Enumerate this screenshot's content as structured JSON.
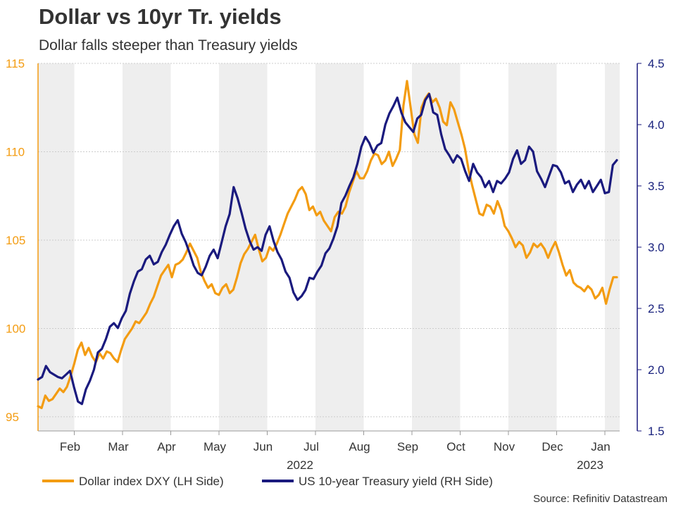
{
  "chart_data": {
    "type": "line",
    "title": "Dollar vs 10yr Tr. yields",
    "subtitle": "Dollar falls steeper than Treasury yields",
    "months": [
      "Feb",
      "Mar",
      "Apr",
      "May",
      "Jun",
      "Jul",
      "Aug",
      "Sep",
      "Oct",
      "Nov",
      "Dec",
      "Jan"
    ],
    "year_labels": [
      "2022",
      "2023"
    ],
    "y_left": {
      "ticks": [
        "115",
        "110",
        "105",
        "100",
        "95"
      ],
      "range": [
        94.2,
        115
      ]
    },
    "y_right": {
      "ticks": [
        "4.5",
        "4.0",
        "3.5",
        "3.0",
        "2.5",
        "2.0",
        "1.5"
      ],
      "range": [
        1.5,
        4.5
      ]
    },
    "series": [
      {
        "name": "Dollar index DXY (LH Side)",
        "axis": "left",
        "color": "#f39c12",
        "values": [
          95.6,
          95.5,
          96.2,
          95.9,
          96.0,
          96.3,
          96.6,
          96.4,
          96.7,
          97.3,
          98.0,
          98.8,
          99.2,
          98.5,
          98.9,
          98.4,
          98.1,
          98.6,
          98.3,
          98.7,
          98.6,
          98.3,
          98.1,
          98.8,
          99.4,
          99.7,
          100.0,
          100.4,
          100.3,
          100.6,
          100.9,
          101.4,
          101.8,
          102.4,
          103.0,
          103.3,
          103.6,
          102.9,
          103.6,
          103.7,
          103.9,
          104.3,
          104.8,
          104.4,
          104.0,
          103.2,
          102.7,
          102.3,
          102.5,
          102.0,
          101.9,
          102.3,
          102.5,
          102.0,
          102.2,
          102.9,
          103.7,
          104.2,
          104.5,
          104.9,
          105.3,
          104.5,
          103.8,
          104.0,
          104.6,
          104.4,
          104.8,
          105.3,
          105.9,
          106.5,
          106.9,
          107.3,
          107.8,
          108.0,
          107.6,
          106.7,
          106.9,
          106.4,
          106.6,
          106.1,
          105.8,
          105.5,
          106.3,
          106.6,
          106.5,
          106.9,
          107.7,
          108.3,
          108.9,
          108.5,
          108.5,
          108.9,
          109.5,
          109.9,
          109.8,
          109.3,
          109.5,
          110.0,
          109.2,
          109.6,
          110.1,
          112.6,
          114.0,
          112.5,
          111.0,
          110.5,
          112.5,
          113.0,
          113.3,
          112.8,
          113.0,
          112.5,
          111.7,
          111.5,
          112.8,
          112.4,
          111.7,
          111.0,
          110.2,
          109.0,
          108.1,
          107.3,
          106.5,
          106.4,
          107.0,
          106.9,
          106.5,
          107.2,
          106.7,
          105.8,
          105.5,
          105.1,
          104.6,
          104.9,
          104.7,
          104.0,
          104.3,
          104.8,
          104.6,
          104.8,
          104.5,
          104.0,
          104.5,
          104.9,
          104.3,
          103.6,
          103.0,
          103.3,
          102.6,
          102.4,
          102.3,
          102.1,
          102.4,
          102.2,
          101.7,
          101.9,
          102.3,
          101.4,
          102.2,
          102.9,
          102.9
        ],
        "x_range": [
          1,
          12.2
        ]
      },
      {
        "name": "US 10-year Treasury yield (RH Side)",
        "axis": "right",
        "color": "#1a1a7e",
        "values": [
          1.92,
          1.94,
          2.03,
          1.98,
          1.96,
          1.94,
          1.93,
          1.96,
          1.99,
          1.86,
          1.74,
          1.72,
          1.84,
          1.91,
          2.0,
          2.14,
          2.17,
          2.25,
          2.35,
          2.38,
          2.34,
          2.42,
          2.48,
          2.62,
          2.72,
          2.8,
          2.82,
          2.9,
          2.93,
          2.86,
          2.88,
          2.96,
          3.02,
          3.1,
          3.17,
          3.22,
          3.11,
          3.04,
          2.95,
          2.85,
          2.79,
          2.77,
          2.84,
          2.93,
          2.98,
          2.91,
          3.04,
          3.17,
          3.27,
          3.49,
          3.4,
          3.28,
          3.15,
          3.05,
          2.98,
          3.0,
          2.97,
          3.1,
          3.17,
          3.05,
          2.96,
          2.9,
          2.8,
          2.75,
          2.63,
          2.57,
          2.6,
          2.65,
          2.75,
          2.74,
          2.8,
          2.85,
          2.95,
          2.99,
          3.07,
          3.17,
          3.36,
          3.42,
          3.5,
          3.57,
          3.68,
          3.82,
          3.9,
          3.85,
          3.77,
          3.83,
          3.85,
          4.0,
          4.09,
          4.15,
          4.22,
          4.1,
          4.02,
          3.98,
          3.94,
          4.05,
          4.08,
          4.2,
          4.25,
          4.1,
          4.08,
          3.92,
          3.8,
          3.75,
          3.69,
          3.75,
          3.72,
          3.62,
          3.54,
          3.68,
          3.61,
          3.57,
          3.49,
          3.54,
          3.45,
          3.54,
          3.52,
          3.56,
          3.61,
          3.72,
          3.79,
          3.68,
          3.71,
          3.82,
          3.78,
          3.62,
          3.56,
          3.49,
          3.58,
          3.67,
          3.66,
          3.61,
          3.52,
          3.54,
          3.45,
          3.51,
          3.55,
          3.48,
          3.54,
          3.45,
          3.5,
          3.55,
          3.44,
          3.45,
          3.67,
          3.71
        ]
      }
    ]
  },
  "legend": {
    "dxy_label": "Dollar index DXY (LH Side)",
    "yield_label": "US 10-year Treasury yield (RH Side)"
  },
  "source": "Source: Refinitiv Datastream",
  "colors": {
    "dxy": "#f39c12",
    "yield": "#1a1a7e",
    "band": "#eeeeee"
  }
}
